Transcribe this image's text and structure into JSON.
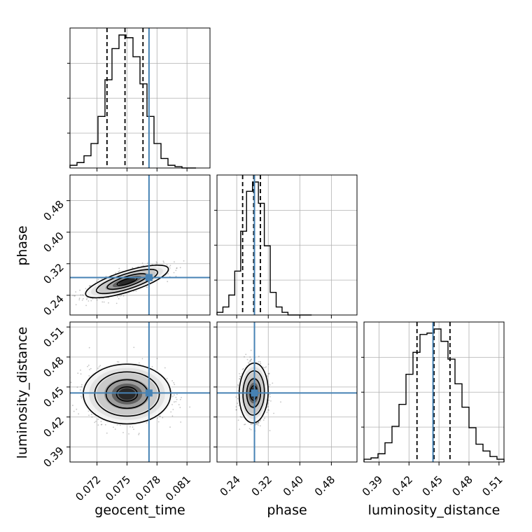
{
  "chart_data": {
    "type": "corner",
    "truth_color": "#4682b4",
    "hist_color": "#000000",
    "parameters": [
      "geocent_time",
      "phase",
      "luminosity_distance"
    ],
    "truths": {
      "geocent_time": 0.0772,
      "phase": 0.285,
      "luminosity_distance": 0.444
    },
    "quantiles": {
      "geocent_time": [
        0.073,
        0.0748,
        0.0766
      ],
      "phase": [
        0.255,
        0.283,
        0.3
      ],
      "luminosity_distance": [
        0.428,
        0.445,
        0.461
      ]
    },
    "ranges": {
      "geocent_time": [
        0.0693,
        0.0833
      ],
      "phase": [
        0.19,
        0.545
      ],
      "luminosity_distance": [
        0.375,
        0.515
      ]
    },
    "ticks": {
      "geocent_time": [
        "0.072",
        "0.075",
        "0.078",
        "0.081"
      ],
      "phase": [
        "0.24",
        "0.32",
        "0.40",
        "0.48"
      ],
      "luminosity_distance": [
        "0.39",
        "0.42",
        "0.45",
        "0.48",
        "0.51"
      ]
    },
    "axis_labels": {
      "x": [
        "geocent_time",
        "phase",
        "luminosity_distance"
      ],
      "y": [
        "phase",
        "luminosity_distance"
      ]
    },
    "histograms": {
      "geocent_time": {
        "x": [
          0.0693,
          0.07,
          0.0707,
          0.0714,
          0.0721,
          0.0728,
          0.0735,
          0.0742,
          0.0749,
          0.0756,
          0.0763,
          0.077,
          0.0777,
          0.0784,
          0.0791,
          0.0798,
          0.0805,
          0.0812
        ],
        "counts": [
          0.02,
          0.04,
          0.09,
          0.18,
          0.38,
          0.65,
          0.88,
          0.98,
          0.96,
          0.82,
          0.62,
          0.38,
          0.18,
          0.07,
          0.02,
          0.01,
          0,
          0
        ]
      },
      "phase": {
        "x": [
          0.19,
          0.205,
          0.22,
          0.235,
          0.25,
          0.265,
          0.28,
          0.295,
          0.31,
          0.325,
          0.34,
          0.355,
          0.37,
          0.385,
          0.4,
          0.415
        ],
        "counts": [
          0.02,
          0.06,
          0.15,
          0.33,
          0.63,
          0.93,
          1.0,
          0.84,
          0.52,
          0.17,
          0.06,
          0.02,
          0,
          0,
          0,
          0
        ]
      },
      "luminosity_distance": {
        "x": [
          0.375,
          0.382,
          0.389,
          0.396,
          0.403,
          0.41,
          0.417,
          0.424,
          0.431,
          0.438,
          0.445,
          0.452,
          0.459,
          0.466,
          0.473,
          0.48,
          0.487,
          0.494,
          0.501,
          0.508
        ],
        "counts": [
          0.02,
          0.03,
          0.06,
          0.14,
          0.26,
          0.42,
          0.64,
          0.8,
          0.93,
          0.94,
          0.97,
          0.88,
          0.75,
          0.57,
          0.4,
          0.25,
          0.13,
          0.08,
          0.04,
          0.02
        ]
      }
    },
    "pairs": [
      {
        "x": "geocent_time",
        "y": "phase",
        "mean": [
          0.075,
          0.275
        ],
        "sd": [
          0.0018,
          0.018
        ],
        "rho": 0.75
      },
      {
        "x": "geocent_time",
        "y": "luminosity_distance",
        "mean": [
          0.075,
          0.443
        ],
        "sd": [
          0.0019,
          0.013
        ],
        "rho": 0.0
      },
      {
        "x": "phase",
        "y": "luminosity_distance",
        "mean": [
          0.283,
          0.444
        ],
        "sd": [
          0.016,
          0.013
        ],
        "rho": 0.05
      }
    ]
  }
}
